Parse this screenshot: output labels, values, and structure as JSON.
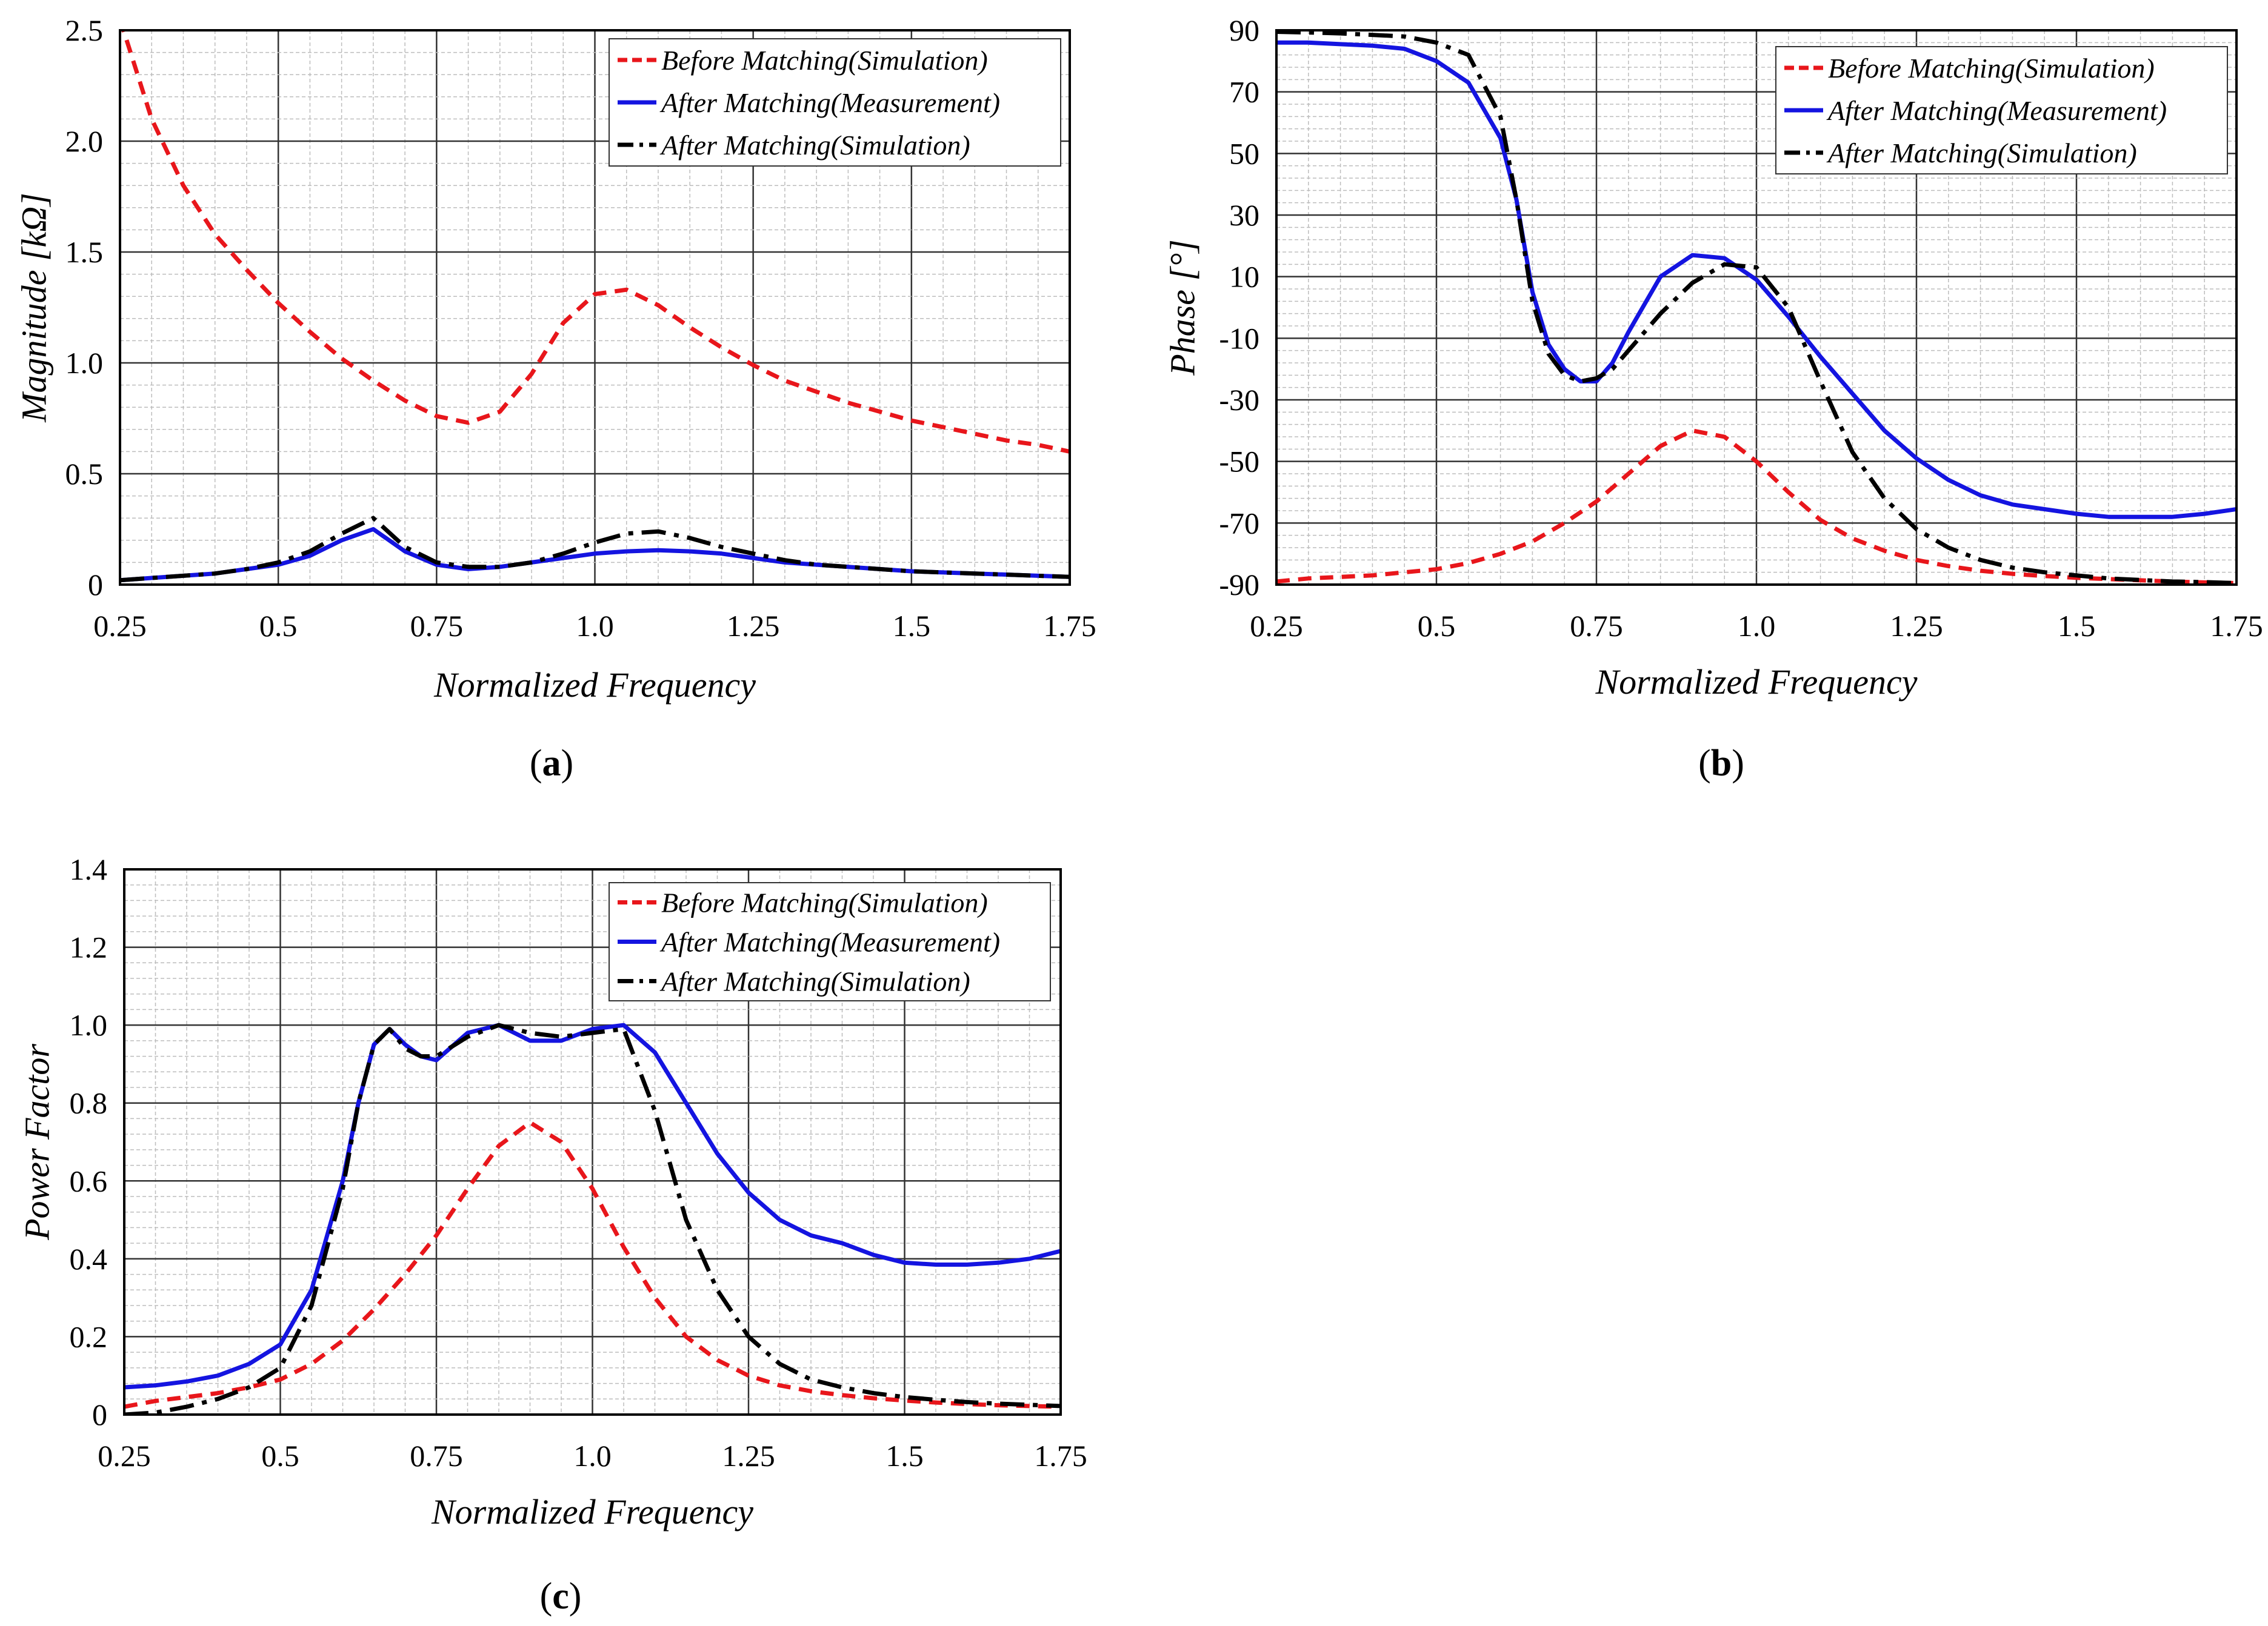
{
  "colors": {
    "before": "#e8161b",
    "after_meas": "#1414e0",
    "after_sim": "#000000",
    "grid_major": "#333333",
    "grid_minor": "#bdbdbd"
  },
  "chart_data": [
    {
      "id": "a",
      "type": "line",
      "panel_label": "a",
      "xlabel": "Normalized Frequency",
      "ylabel": "Magnitude [kΩ]",
      "xlim": [
        0.25,
        1.75
      ],
      "ylim": [
        0,
        2.5
      ],
      "xticks": [
        0.25,
        0.5,
        0.75,
        1.0,
        1.25,
        1.5,
        1.75
      ],
      "xtick_labels": [
        "0.25",
        "0.5",
        "0.75",
        "1.0",
        "1.25",
        "1.5",
        "1.75"
      ],
      "yticks": [
        0,
        0.5,
        1.0,
        1.5,
        2.0,
        2.5
      ],
      "ytick_labels": [
        "0",
        "0.5",
        "1.0",
        "1.5",
        "2.0",
        "2.5"
      ],
      "legend": "top-right",
      "series": [
        {
          "name": "Before Matching(Simulation)",
          "style": "dash",
          "color": "#e8161b",
          "x": [
            0.25,
            0.3,
            0.35,
            0.4,
            0.45,
            0.5,
            0.55,
            0.6,
            0.65,
            0.7,
            0.75,
            0.8,
            0.85,
            0.9,
            0.95,
            1.0,
            1.05,
            1.1,
            1.15,
            1.2,
            1.25,
            1.3,
            1.35,
            1.4,
            1.45,
            1.5,
            1.55,
            1.6,
            1.65,
            1.7,
            1.75
          ],
          "y": [
            2.55,
            2.1,
            1.8,
            1.58,
            1.42,
            1.27,
            1.14,
            1.02,
            0.92,
            0.83,
            0.76,
            0.73,
            0.78,
            0.95,
            1.18,
            1.31,
            1.33,
            1.26,
            1.16,
            1.07,
            0.99,
            0.92,
            0.87,
            0.82,
            0.78,
            0.74,
            0.71,
            0.68,
            0.65,
            0.63,
            0.6
          ]
        },
        {
          "name": "After Matching(Measurement)",
          "style": "solid",
          "color": "#1414e0",
          "x": [
            0.25,
            0.3,
            0.35,
            0.4,
            0.45,
            0.5,
            0.55,
            0.6,
            0.65,
            0.7,
            0.75,
            0.8,
            0.85,
            0.9,
            0.95,
            1.0,
            1.05,
            1.1,
            1.15,
            1.2,
            1.25,
            1.3,
            1.35,
            1.4,
            1.45,
            1.5,
            1.55,
            1.6,
            1.65,
            1.7,
            1.75
          ],
          "y": [
            0.02,
            0.03,
            0.04,
            0.05,
            0.07,
            0.09,
            0.13,
            0.2,
            0.25,
            0.15,
            0.09,
            0.07,
            0.08,
            0.1,
            0.12,
            0.14,
            0.15,
            0.155,
            0.15,
            0.14,
            0.12,
            0.1,
            0.09,
            0.08,
            0.07,
            0.06,
            0.055,
            0.05,
            0.045,
            0.04,
            0.035
          ]
        },
        {
          "name": "After Matching(Simulation)",
          "style": "dashdot",
          "color": "#000000",
          "x": [
            0.25,
            0.3,
            0.35,
            0.4,
            0.45,
            0.5,
            0.55,
            0.6,
            0.65,
            0.7,
            0.75,
            0.8,
            0.85,
            0.9,
            0.95,
            1.0,
            1.05,
            1.1,
            1.15,
            1.2,
            1.25,
            1.3,
            1.35,
            1.4,
            1.45,
            1.5,
            1.55,
            1.6,
            1.65,
            1.7,
            1.75
          ],
          "y": [
            0.02,
            0.03,
            0.04,
            0.05,
            0.07,
            0.1,
            0.15,
            0.23,
            0.3,
            0.17,
            0.1,
            0.08,
            0.08,
            0.1,
            0.14,
            0.19,
            0.23,
            0.24,
            0.21,
            0.17,
            0.14,
            0.11,
            0.09,
            0.08,
            0.07,
            0.06,
            0.055,
            0.05,
            0.045,
            0.04,
            0.035
          ]
        }
      ]
    },
    {
      "id": "b",
      "type": "line",
      "panel_label": "b",
      "xlabel": "Normalized Frequency",
      "ylabel": "Phase [°]",
      "xlim": [
        0.25,
        1.75
      ],
      "ylim": [
        -90,
        90
      ],
      "xticks": [
        0.25,
        0.5,
        0.75,
        1.0,
        1.25,
        1.5,
        1.75
      ],
      "xtick_labels": [
        "0.25",
        "0.5",
        "0.75",
        "1.0",
        "1.25",
        "1.5",
        "1.75"
      ],
      "yticks": [
        90,
        70,
        50,
        30,
        10,
        -10,
        -30,
        -50,
        -70,
        -90
      ],
      "ytick_labels": [
        "90",
        "70",
        "50",
        "30",
        "10",
        "-10",
        "-30",
        "-50",
        "-70",
        "-90"
      ],
      "legend": "top-right",
      "series": [
        {
          "name": "Before Matching(Simulation)",
          "style": "dash",
          "color": "#e8161b",
          "x": [
            0.25,
            0.3,
            0.35,
            0.4,
            0.45,
            0.5,
            0.55,
            0.6,
            0.65,
            0.7,
            0.75,
            0.8,
            0.85,
            0.9,
            0.95,
            1.0,
            1.05,
            1.1,
            1.15,
            1.2,
            1.25,
            1.3,
            1.35,
            1.4,
            1.45,
            1.5,
            1.55,
            1.6,
            1.65,
            1.7,
            1.75
          ],
          "y": [
            -89,
            -88,
            -87.5,
            -87,
            -86,
            -85,
            -83,
            -80,
            -76,
            -70,
            -63,
            -54,
            -45,
            -40,
            -42,
            -50,
            -60,
            -69,
            -75,
            -79,
            -82,
            -84,
            -85.5,
            -86.5,
            -87.2,
            -87.8,
            -88.2,
            -88.6,
            -89,
            -89.3,
            -89.5
          ]
        },
        {
          "name": "After Matching(Measurement)",
          "style": "solid",
          "color": "#1414e0",
          "x": [
            0.25,
            0.3,
            0.35,
            0.4,
            0.45,
            0.5,
            0.55,
            0.6,
            0.625,
            0.65,
            0.675,
            0.7,
            0.725,
            0.75,
            0.775,
            0.8,
            0.85,
            0.9,
            0.95,
            1.0,
            1.05,
            1.1,
            1.15,
            1.2,
            1.25,
            1.3,
            1.35,
            1.4,
            1.45,
            1.5,
            1.55,
            1.6,
            1.65,
            1.7,
            1.75
          ],
          "y": [
            86,
            86,
            85.5,
            85,
            84,
            80,
            73,
            55,
            35,
            5,
            -12,
            -20,
            -24,
            -24,
            -18,
            -8,
            10,
            17,
            16,
            9,
            -3,
            -16,
            -28,
            -40,
            -49,
            -56,
            -61,
            -64,
            -65.5,
            -67,
            -68,
            -68,
            -68,
            -67,
            -65.5
          ]
        },
        {
          "name": "After Matching(Simulation)",
          "style": "dashdot",
          "color": "#000000",
          "x": [
            0.25,
            0.3,
            0.35,
            0.4,
            0.45,
            0.5,
            0.55,
            0.6,
            0.625,
            0.65,
            0.675,
            0.7,
            0.725,
            0.75,
            0.775,
            0.8,
            0.85,
            0.9,
            0.95,
            1.0,
            1.05,
            1.1,
            1.15,
            1.2,
            1.25,
            1.3,
            1.35,
            1.4,
            1.45,
            1.5,
            1.55,
            1.6,
            1.65,
            1.7,
            1.75
          ],
          "y": [
            89.5,
            89.3,
            89,
            88.5,
            88,
            86,
            82,
            62,
            35,
            2,
            -15,
            -22,
            -24,
            -23,
            -20,
            -14,
            -2,
            8,
            14,
            13,
            0,
            -24,
            -47,
            -62,
            -72,
            -78,
            -82,
            -84.5,
            -86,
            -87,
            -88,
            -88.5,
            -89,
            -89.2,
            -89.5
          ]
        }
      ]
    },
    {
      "id": "c",
      "type": "line",
      "panel_label": "c",
      "xlabel": "Normalized Frequency",
      "ylabel": "Power Factor",
      "xlim": [
        0.25,
        1.75
      ],
      "ylim": [
        0,
        1.4
      ],
      "xticks": [
        0.25,
        0.5,
        0.75,
        1.0,
        1.25,
        1.5,
        1.75
      ],
      "xtick_labels": [
        "0.25",
        "0.5",
        "0.75",
        "1.0",
        "1.25",
        "1.5",
        "1.75"
      ],
      "yticks": [
        0,
        0.2,
        0.4,
        0.6,
        0.8,
        1.0,
        1.2,
        1.4
      ],
      "ytick_labels": [
        "0",
        "0.2",
        "0.4",
        "0.6",
        "0.8",
        "1.0",
        "1.2",
        "1.4"
      ],
      "legend": "top-right",
      "series": [
        {
          "name": "Before Matching(Simulation)",
          "style": "dash",
          "color": "#e8161b",
          "x": [
            0.25,
            0.3,
            0.35,
            0.4,
            0.45,
            0.5,
            0.55,
            0.6,
            0.65,
            0.7,
            0.75,
            0.8,
            0.85,
            0.9,
            0.95,
            1.0,
            1.05,
            1.1,
            1.15,
            1.2,
            1.25,
            1.3,
            1.35,
            1.4,
            1.45,
            1.5,
            1.55,
            1.6,
            1.65,
            1.7,
            1.75
          ],
          "y": [
            0.02,
            0.035,
            0.045,
            0.055,
            0.07,
            0.09,
            0.13,
            0.19,
            0.27,
            0.36,
            0.46,
            0.58,
            0.69,
            0.75,
            0.7,
            0.58,
            0.43,
            0.3,
            0.2,
            0.14,
            0.1,
            0.075,
            0.06,
            0.05,
            0.042,
            0.036,
            0.031,
            0.027,
            0.024,
            0.022,
            0.02
          ]
        },
        {
          "name": "After Matching(Measurement)",
          "style": "solid",
          "color": "#1414e0",
          "x": [
            0.25,
            0.3,
            0.35,
            0.4,
            0.45,
            0.5,
            0.55,
            0.6,
            0.625,
            0.65,
            0.675,
            0.7,
            0.725,
            0.75,
            0.8,
            0.85,
            0.9,
            0.95,
            1.0,
            1.05,
            1.1,
            1.15,
            1.2,
            1.25,
            1.3,
            1.35,
            1.4,
            1.45,
            1.5,
            1.55,
            1.6,
            1.65,
            1.7,
            1.75
          ],
          "y": [
            0.07,
            0.075,
            0.085,
            0.1,
            0.13,
            0.18,
            0.32,
            0.6,
            0.8,
            0.95,
            0.99,
            0.95,
            0.92,
            0.91,
            0.98,
            1.0,
            0.96,
            0.96,
            0.99,
            1.0,
            0.93,
            0.8,
            0.67,
            0.57,
            0.5,
            0.46,
            0.44,
            0.41,
            0.39,
            0.385,
            0.385,
            0.39,
            0.4,
            0.42
          ]
        },
        {
          "name": "After Matching(Simulation)",
          "style": "dashdot",
          "color": "#000000",
          "x": [
            0.25,
            0.3,
            0.35,
            0.4,
            0.45,
            0.5,
            0.55,
            0.6,
            0.625,
            0.65,
            0.675,
            0.7,
            0.725,
            0.75,
            0.8,
            0.85,
            0.9,
            0.95,
            1.0,
            1.05,
            1.1,
            1.15,
            1.2,
            1.25,
            1.3,
            1.35,
            1.4,
            1.45,
            1.5,
            1.55,
            1.6,
            1.65,
            1.7,
            1.75
          ],
          "y": [
            0.0,
            0.005,
            0.02,
            0.04,
            0.07,
            0.12,
            0.28,
            0.58,
            0.8,
            0.95,
            0.99,
            0.94,
            0.92,
            0.92,
            0.97,
            1.0,
            0.98,
            0.97,
            0.98,
            0.99,
            0.78,
            0.5,
            0.32,
            0.2,
            0.13,
            0.09,
            0.07,
            0.055,
            0.045,
            0.038,
            0.032,
            0.028,
            0.025,
            0.022
          ]
        }
      ]
    }
  ]
}
